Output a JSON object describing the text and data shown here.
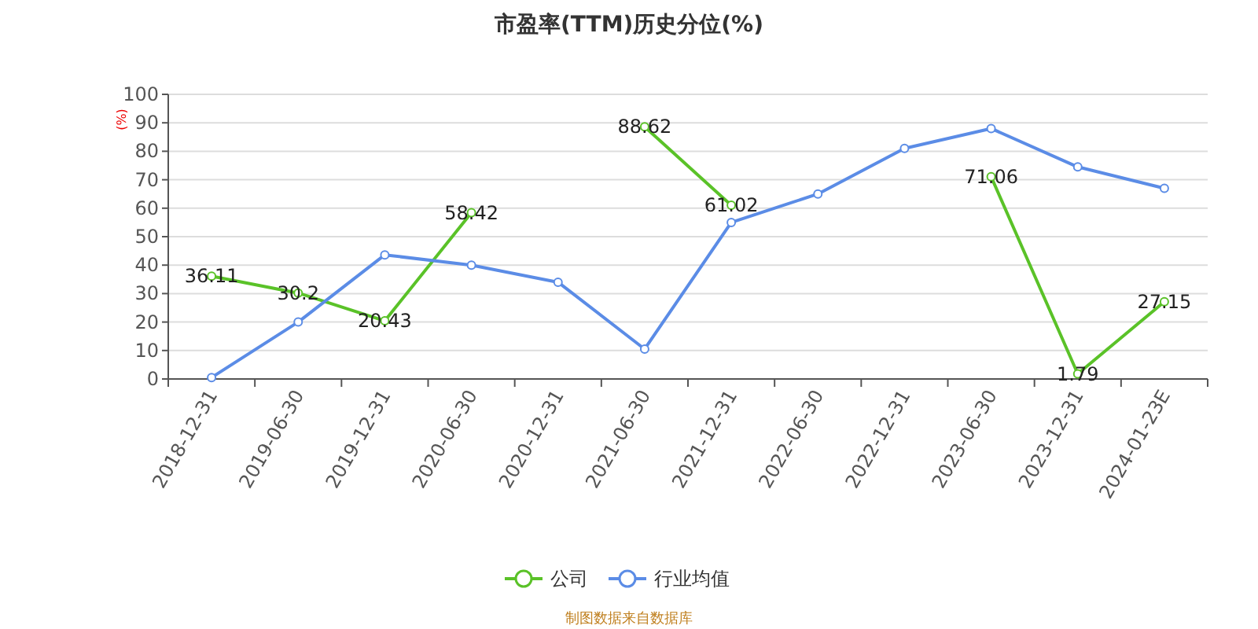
{
  "chart_data": {
    "type": "line",
    "title": "市盈率(TTM)历史分位(%)",
    "ylabel": "(%)",
    "categories": [
      "2018-12-31",
      "2019-06-30",
      "2019-12-31",
      "2020-06-30",
      "2020-12-31",
      "2021-06-30",
      "2021-12-31",
      "2022-06-30",
      "2022-12-31",
      "2023-06-30",
      "2023-12-31",
      "2024-01-23E"
    ],
    "series": [
      {
        "name": "公司",
        "color": "#5ac228",
        "values": [
          36.11,
          30.2,
          20.43,
          58.42,
          null,
          88.62,
          61.02,
          null,
          null,
          71.06,
          1.79,
          27.15
        ],
        "value_labels": [
          "36.11",
          "30.2",
          "20.43",
          "58.42",
          null,
          "88.62",
          "61.02",
          null,
          null,
          "71.06",
          "1.79",
          "27.15"
        ]
      },
      {
        "name": "行业均值",
        "color": "#5b8ce6",
        "values": [
          0.5,
          20,
          43.6,
          40,
          34,
          10.5,
          55,
          65,
          81,
          88,
          74.5,
          67
        ]
      }
    ],
    "ylim": [
      0,
      100
    ],
    "yticks": [
      0,
      10,
      20,
      30,
      40,
      50,
      60,
      70,
      80,
      90,
      100
    ],
    "grid": "y",
    "legend": "bottom",
    "marker": "circle",
    "line_style": "solid",
    "annotations": [
      "制图数据来自数据库"
    ]
  }
}
